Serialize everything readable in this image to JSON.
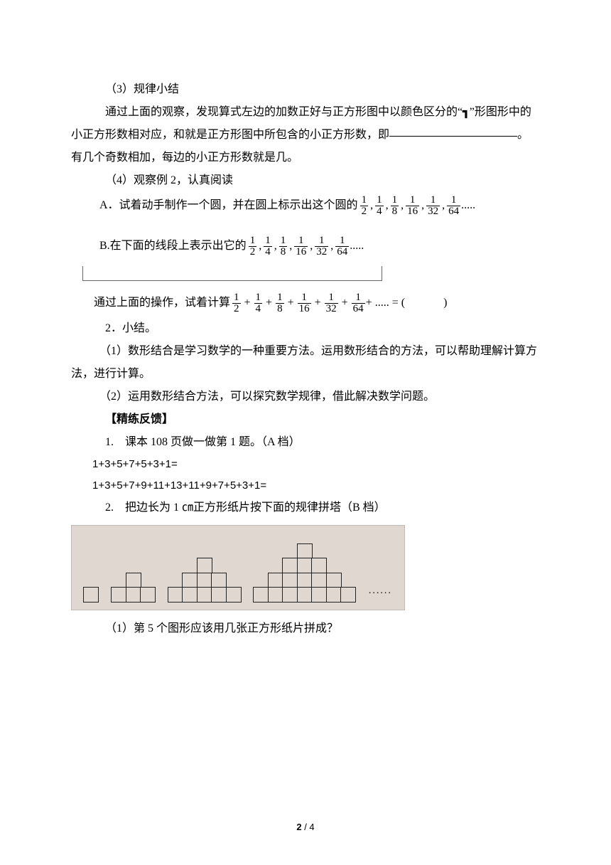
{
  "s3": {
    "label": "（3）规律小结"
  },
  "p_rule_1": "通过上面的观察，发现算式左边的加数正好与正方形图中以颜色区分的“",
  "p_rule_symbol": "┓",
  "p_rule_2": "”形图形中的小正方形数相对应，和就是正方形图中所包含的小正方形数，即",
  "p_rule_3": "。有几个奇数相加，每边的小正方形数就是几。",
  "s4": {
    "label": "（4）观察例 2，认真阅读"
  },
  "itemA_lead": "A．试着动手制作一个圆，并在圆上标示出这个圆的",
  "itemA_fracs": [
    {
      "n": "1",
      "d": "2"
    },
    {
      "n": "1",
      "d": "4"
    },
    {
      "n": "1",
      "d": "8"
    },
    {
      "n": "1",
      "d": "16"
    },
    {
      "n": "1",
      "d": "32"
    },
    {
      "n": "1",
      "d": "64"
    }
  ],
  "itemA_tail": ".....",
  "itemB_lead": "B.在下面的线段上表示出它的",
  "itemB_fracs": [
    {
      "n": "1",
      "d": "2"
    },
    {
      "n": "1",
      "d": "4"
    },
    {
      "n": "1",
      "d": "8"
    },
    {
      "n": "1",
      "d": "16"
    },
    {
      "n": "1",
      "d": "32"
    },
    {
      "n": "1",
      "d": "64"
    }
  ],
  "itemB_tail": ".....",
  "calc_lead": "通过上面的操作，试着计算",
  "calc_fracs": [
    {
      "n": "1",
      "d": "2"
    },
    {
      "n": "1",
      "d": "4"
    },
    {
      "n": "1",
      "d": "8"
    },
    {
      "n": "1",
      "d": "16"
    },
    {
      "n": "1",
      "d": "32"
    },
    {
      "n": "1",
      "d": "64"
    }
  ],
  "calc_mid": " + ..... = (",
  "calc_tail": ")",
  "h2_summary": "2．小结。",
  "sum1": "（1）数形结合是学习数学的一种重要方法。运用数形结合的方法，可以帮助理解计算方法，进行计算。",
  "sum2": "（2）运用数形结合方法，可以探究数学规律，借此解决数学问题。",
  "feedback_title": "【精练反馈】",
  "q1_title": "1.　课本 108 页做一做第 1 题。（A 档）",
  "q1_eq1": "1+3+5+7+5+3+1=",
  "q1_eq2": "1+3+5+7+9+11+13+11+9+7+5+3+1=",
  "q2_title": "2.　把边长为 1 ㎝正方形纸片按下面的规律拼塔（B 档）",
  "pyramids": {
    "bg": "#e0d8d0",
    "border": "#222222",
    "figures": [
      [
        1
      ],
      [
        1,
        3
      ],
      [
        1,
        3,
        5
      ],
      [
        1,
        3,
        5,
        7
      ]
    ],
    "trailing_dots": "......"
  },
  "q2_sub1": "（1）第 5 个图形应该用几张正方形纸片拼成？",
  "footer": {
    "page": "2",
    "sep": " / ",
    "total": "4"
  }
}
